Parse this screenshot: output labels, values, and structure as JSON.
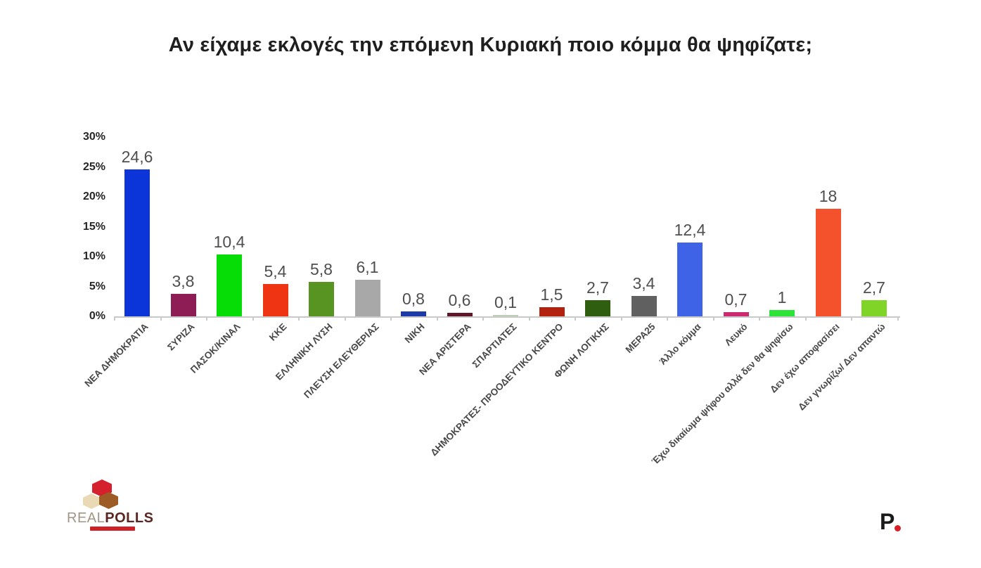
{
  "title": "Αν είχαμε εκλογές την επόμενη Κυριακή ποιο κόμμα θα ψηφίζατε;",
  "chart_data": {
    "type": "bar",
    "title": "Αν είχαμε εκλογές την επόμενη Κυριακή ποιο κόμμα θα ψηφίζατε;",
    "categories": [
      "ΝΕΑ ΔΗΜΟΚΡΑΤΙΑ",
      "ΣΥΡΙΖΑ",
      "ΠΑΣΟΚ/ΚΙΝΑΛ",
      "ΚΚΕ",
      "ΕΛΛΗΝΙΚΗ ΛΥΣΗ",
      "ΠΛΕΥΣΗ ΕΛΕΥΘΕΡΙΑΣ",
      "ΝΙΚΗ",
      "ΝΕΑ ΑΡΙΣΤΕΡΑ",
      "ΣΠΑΡΤΙΑΤΕΣ",
      "ΔΗΜΟΚΡΑΤΕΣ- ΠΡΟΟΔΕΥΤΙΚΟ ΚΕΝΤΡΟ",
      "ΦΩΝΗ ΛΟΓΙΚΗΣ",
      "ΜΕΡΑ25",
      "Άλλο κόμμα",
      "Λευκό",
      "Έχω δικαίωμα ψήφου αλλά δεν θα ψηφίσω",
      "Δεν έχω αποφασίσει",
      "Δεν γνωρίζω/ Δεν απαντώ"
    ],
    "values": [
      24.6,
      3.8,
      10.4,
      5.4,
      5.8,
      6.1,
      0.8,
      0.6,
      0.1,
      1.5,
      2.7,
      3.4,
      12.4,
      0.7,
      1,
      18,
      2.7
    ],
    "value_labels": [
      "24,6",
      "3,8",
      "10,4",
      "5,4",
      "5,8",
      "6,1",
      "0,8",
      "0,6",
      "0,1",
      "1,5",
      "2,7",
      "3,4",
      "12,4",
      "0,7",
      "1",
      "18",
      "2,7"
    ],
    "bar_colors": [
      "#0b35d8",
      "#8e1d55",
      "#06dd06",
      "#ee3412",
      "#579422",
      "#a8a8a8",
      "#1c3ba8",
      "#601828",
      "#bccfb4",
      "#b2220f",
      "#2f5e11",
      "#606060",
      "#3f63e6",
      "#cb2a6e",
      "#2ee338",
      "#f4512d",
      "#80d428"
    ],
    "xlabel": "",
    "ylabel": "",
    "ylim": [
      0,
      30
    ],
    "y_ticks": {
      "values": [
        0,
        5,
        10,
        15,
        20,
        25,
        30
      ],
      "labels": [
        "0%",
        "5%",
        "10%",
        "15%",
        "20%",
        "25%",
        "30%"
      ]
    },
    "grid": false,
    "legend": "none",
    "value_labels_position": "above-bars"
  },
  "footer": {
    "realpolls_logo": {
      "text_light": "REAL",
      "text_bold": "POLLS",
      "colors": {
        "hex_red": "#d5202e",
        "hex_beige": "#ead9b5",
        "hex_brown": "#9d5b26",
        "text_light": "#a39584",
        "text_bold": "#5c2620",
        "strip_red": "#cf2027"
      }
    },
    "publisher_logo": {
      "letter": "P",
      "dot_color": "#d61f26"
    }
  }
}
